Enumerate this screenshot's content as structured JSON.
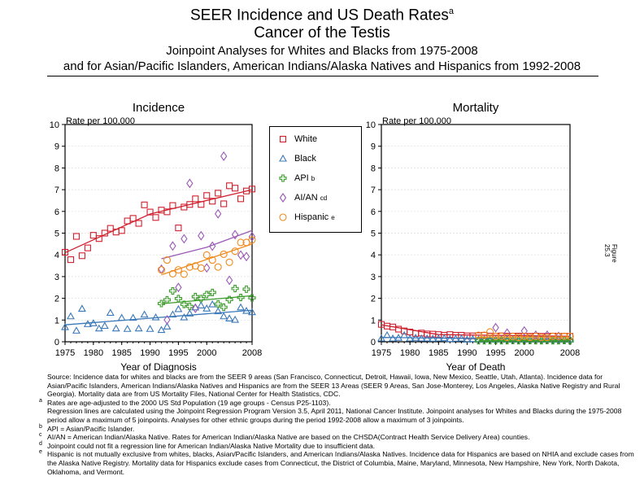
{
  "header": {
    "title": "SEER Incidence and US Death Rates",
    "title_sup": "a",
    "subtitle1": "Cancer of the Testis",
    "subtitle2": "Joinpoint Analyses for Whites and Blacks from 1975-2008",
    "subtitle3": "and for Asian/Pacific Islanders, American Indians/Alaska Natives and Hispanics from 1992-2008"
  },
  "side_label": "Figure 25.3",
  "legend": [
    {
      "name": "White",
      "sup": "",
      "marker": "square",
      "color": "#d0202e"
    },
    {
      "name": "Black",
      "sup": "",
      "marker": "triangle",
      "color": "#3a78b8"
    },
    {
      "name": "API",
      "sup": "b",
      "marker": "plus",
      "color": "#3a9a2a"
    },
    {
      "name": "AI/AN",
      "sup": "cd",
      "marker": "diamond",
      "color": "#9b59b6"
    },
    {
      "name": "Hispanic",
      "sup": "e",
      "marker": "circle",
      "color": "#f08a1c"
    }
  ],
  "chart_data": [
    {
      "type": "scatter",
      "title": "Incidence",
      "ylabel": "Rate per 100,000",
      "xlabel": "Year of Diagnosis",
      "xlim": [
        1975,
        2008
      ],
      "ylim": [
        0,
        10
      ],
      "xticks": [
        "1975",
        "1980",
        "1985",
        "1990",
        "1995",
        "2000",
        "2008"
      ],
      "yticks": [
        "0",
        "1",
        "2",
        "3",
        "4",
        "5",
        "6",
        "7",
        "8",
        "9",
        "10"
      ],
      "grid": true,
      "series": [
        {
          "name": "White",
          "x_start": 1975,
          "values": [
            4.12,
            3.78,
            4.85,
            3.96,
            4.32,
            4.9,
            4.75,
            5.0,
            5.22,
            5.05,
            5.12,
            5.56,
            5.68,
            5.45,
            6.3,
            5.97,
            5.72,
            6.06,
            5.98,
            6.27,
            5.24,
            6.2,
            6.32,
            6.58,
            6.32,
            6.73,
            6.47,
            6.84,
            6.35,
            7.18,
            7.07,
            6.58,
            6.94,
            7.03
          ],
          "trend": [
            [
              1975,
              4.1
            ],
            [
              1990,
              5.88
            ],
            [
              2008,
              7.0
            ]
          ]
        },
        {
          "name": "Black",
          "x_start": 1975,
          "values": [
            0.67,
            1.17,
            0.51,
            1.52,
            0.81,
            0.85,
            0.61,
            0.73,
            1.33,
            0.61,
            1.1,
            0.59,
            1.1,
            0.61,
            1.25,
            0.59,
            1.12,
            0.54,
            0.7,
            1.25,
            1.5,
            1.12,
            1.3,
            1.58,
            1.67,
            1.53,
            1.72,
            1.4,
            1.17,
            1.07,
            1.01,
            1.58,
            1.42,
            1.36
          ],
          "trend": [
            [
              1975,
              0.78
            ],
            [
              2008,
              1.45
            ]
          ]
        },
        {
          "name": "API",
          "x_start": 1992,
          "values": [
            1.76,
            1.93,
            2.34,
            1.99,
            1.72,
            1.63,
            2.08,
            1.99,
            2.17,
            2.27,
            1.74,
            1.59,
            1.94,
            2.45,
            2.04,
            2.42,
            2.02
          ],
          "trend": [
            [
              1992,
              1.75
            ],
            [
              2008,
              2.12
            ]
          ]
        },
        {
          "name": "AI/AN",
          "x_start": 1992,
          "values": [
            3.34,
            1.01,
            4.41,
            2.5,
            4.74,
            7.29,
            1.54,
            4.88,
            3.4,
            4.4,
            5.89,
            8.54,
            2.83,
            4.93,
            3.99,
            3.92,
            4.84
          ],
          "trend": [
            [
              1992,
              3.82
            ],
            [
              2000,
              4.35
            ],
            [
              2008,
              5.12
            ]
          ]
        },
        {
          "name": "Hispanic",
          "x_start": 1992,
          "values": [
            3.31,
            3.76,
            3.13,
            3.31,
            3.11,
            3.44,
            3.49,
            3.39,
            3.99,
            3.76,
            3.44,
            4.03,
            3.66,
            4.17,
            4.57,
            4.57,
            4.69
          ],
          "trend": [
            [
              1992,
              3.08
            ],
            [
              2008,
              4.5
            ]
          ]
        }
      ]
    },
    {
      "type": "scatter",
      "title": "Mortality",
      "ylabel": "Rate per 100,000",
      "xlabel": "Year of Death",
      "xlim": [
        1975,
        2008
      ],
      "ylim": [
        0,
        10
      ],
      "xticks": [
        "1975",
        "1980",
        "1985",
        "1990",
        "1995",
        "2000",
        "2008"
      ],
      "yticks": [
        "0",
        "1",
        "2",
        "3",
        "4",
        "5",
        "6",
        "7",
        "8",
        "9",
        "10"
      ],
      "grid": true,
      "series": [
        {
          "name": "White",
          "x_start": 1975,
          "values": [
            0.8,
            0.72,
            0.68,
            0.58,
            0.5,
            0.45,
            0.38,
            0.4,
            0.36,
            0.35,
            0.33,
            0.3,
            0.33,
            0.3,
            0.3,
            0.27,
            0.27,
            0.28,
            0.3,
            0.26,
            0.26,
            0.27,
            0.26,
            0.26,
            0.26,
            0.25,
            0.25,
            0.26,
            0.25,
            0.25,
            0.26,
            0.25,
            0.25,
            0.25
          ],
          "trend": [
            [
              1975,
              0.78
            ],
            [
              1985,
              0.33
            ],
            [
              2008,
              0.25
            ]
          ]
        },
        {
          "name": "Black",
          "x_start": 1975,
          "values": [
            0.15,
            0.3,
            0.15,
            0.18,
            0.3,
            0.15,
            0.18,
            0.15,
            0.15,
            0.14,
            0.15,
            0.16,
            0.12,
            0.14,
            0.15,
            0.1,
            0.12,
            0.1,
            0.1,
            0.12,
            0.1,
            0.12,
            0.1,
            0.1,
            0.11,
            0.1,
            0.1,
            0.12,
            0.1,
            0.11,
            0.1,
            0.1,
            0.1,
            0.1
          ],
          "trend": [
            [
              1975,
              0.2
            ],
            [
              2008,
              0.1
            ]
          ]
        },
        {
          "name": "API",
          "x_start": 1992,
          "values": [
            0.05,
            0.05,
            0.05,
            0.06,
            0.05,
            0.05,
            0.06,
            0.05,
            0.05,
            0.06,
            0.05,
            0.05,
            0.06,
            0.05,
            0.05,
            0.06,
            0.05
          ],
          "trend": [
            [
              1992,
              0.05
            ],
            [
              2008,
              0.05
            ]
          ]
        },
        {
          "name": "AI/AN",
          "x_start": 1995,
          "values": [
            0.65,
            null,
            0.4,
            null,
            null,
            0.5,
            null,
            0.3,
            null,
            0.3,
            null,
            0.25,
            null,
            null
          ],
          "trend": []
        },
        {
          "name": "Hispanic",
          "x_start": 1992,
          "values": [
            0.3,
            0.3,
            0.45,
            0.25,
            0.25,
            0.2,
            0.25,
            0.2,
            0.25,
            0.2,
            0.25,
            0.2,
            0.2,
            0.25,
            0.25,
            0.25,
            0.25
          ],
          "trend": [
            [
              1992,
              0.22
            ],
            [
              2008,
              0.22
            ]
          ]
        }
      ]
    }
  ],
  "footnotes": [
    {
      "mark": "",
      "text": "Source:  Incidence data for whites and blacks are from the SEER 9 areas (San Francisco, Connecticut, Detroit, Hawaii, Iowa, New Mexico, Seattle, Utah, Atlanta). Incidence data for Asian/Pacific Islanders, American Indians/Alaska Natives and Hispanics are from the SEER 13 Areas (SEER 9 Areas, San Jose-Monterey, Los Angeles, Alaska Native Registry and Rural Georgia).  Mortality data are from US Mortality Files, National Center for Health Statistics, CDC."
    },
    {
      "mark": "a",
      "text": "Rates are age-adjusted to the 2000 US Std Population (19 age groups - Census P25-1103)."
    },
    {
      "mark": "",
      "text": "Regression lines are calculated using the Joinpoint Regression Program Version 3.5, April 2011, National Cancer Institute.  Joinpoint analyses for Whites and Blacks during the 1975-2008 period allow a maximum of 5 joinpoints. Analyses for other ethnic groups during the period 1992-2008 allow a maximum of 3 joinpoints."
    },
    {
      "mark": "b",
      "text": "API = Asian/Pacific Islander."
    },
    {
      "mark": "c",
      "text": "AI/AN = American Indian/Alaska Native.  Rates for American Indian/Alaska Native are based on the CHSDA(Contract Health Service Delivery Area) counties."
    },
    {
      "mark": "d",
      "text": "Joinpoint could not fit a regression line for American Indian/Alaska Native Mortality due to insufficient data."
    },
    {
      "mark": "e",
      "text": "Hispanic is not mutually exclusive from whites, blacks, Asian/Pacific Islanders, and American Indians/Alaska Natives.  Incidence data for Hispanics are based on NHIA and exclude cases from the Alaska Native Registry.  Mortality data for Hispanics exclude cases from Connecticut, the District of Columbia, Maine, Maryland, Minnesota, New Hampshire, New York, North Dakota, Oklahoma, and Vermont."
    }
  ]
}
